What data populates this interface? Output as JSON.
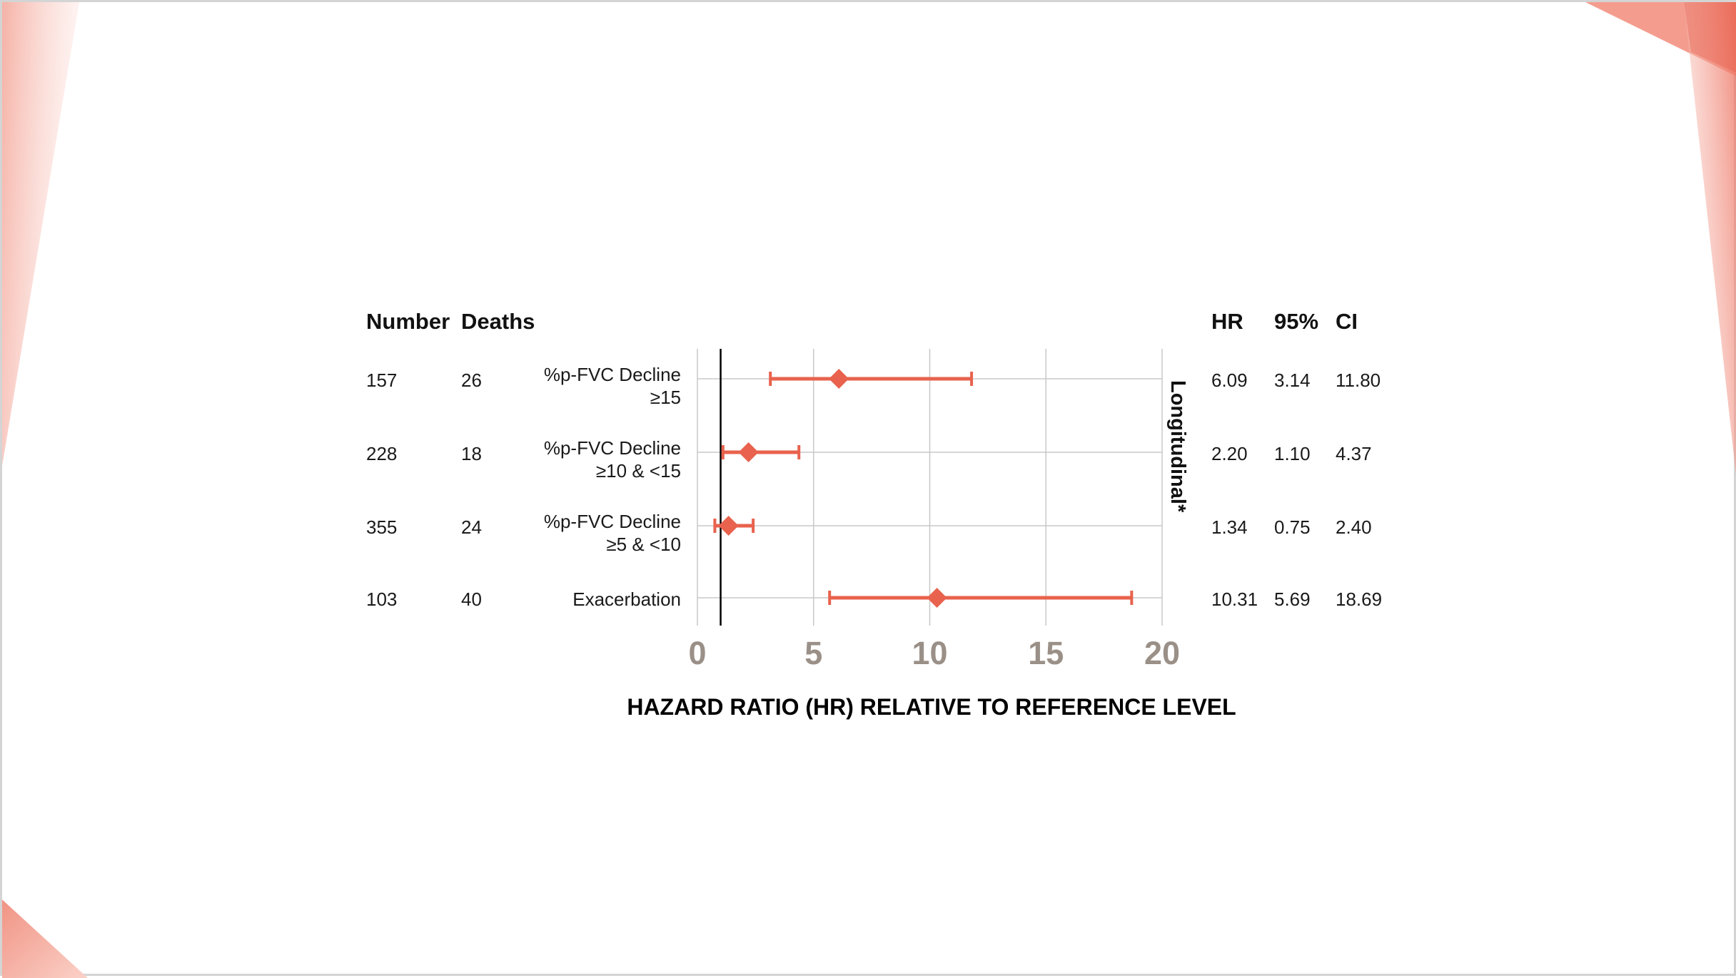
{
  "colors": {
    "marker": "#e8624d",
    "grid": "#c8c8c8",
    "reference_line": "#000000",
    "tick_label": "#9a9088",
    "decoration": "#e8624d"
  },
  "headers": {
    "number": "Number",
    "deaths": "Deaths",
    "hr": "HR",
    "ci_95": "95%",
    "ci": "CI"
  },
  "side_label": "Longitudinal*",
  "chart_data": {
    "type": "forest",
    "xlabel": "HAZARD RATIO (HR) RELATIVE TO REFERENCE LEVEL",
    "xlim": [
      0,
      20
    ],
    "xticks": [
      "0",
      "5",
      "10",
      "15",
      "20"
    ],
    "reference_line": 1,
    "grid": true,
    "rows": [
      {
        "number": "157",
        "deaths": "26",
        "label": [
          "%p-FVC Decline",
          "≥15"
        ],
        "hr": 6.09,
        "lower": 3.14,
        "upper": 11.8,
        "hr_text": "6.09",
        "lower_text": "3.14",
        "upper_text": "11.80"
      },
      {
        "number": "228",
        "deaths": "18",
        "label": [
          "%p-FVC Decline",
          "≥10 & <15"
        ],
        "hr": 2.2,
        "lower": 1.1,
        "upper": 4.37,
        "hr_text": "2.20",
        "lower_text": "1.10",
        "upper_text": "4.37"
      },
      {
        "number": "355",
        "deaths": "24",
        "label": [
          "%p-FVC Decline",
          "≥5 & <10"
        ],
        "hr": 1.34,
        "lower": 0.75,
        "upper": 2.4,
        "hr_text": "1.34",
        "lower_text": "0.75",
        "upper_text": "2.40"
      },
      {
        "number": "103",
        "deaths": "40",
        "label": [
          "Exacerbation"
        ],
        "hr": 10.31,
        "lower": 5.69,
        "upper": 18.69,
        "hr_text": "10.31",
        "lower_text": "5.69",
        "upper_text": "18.69"
      }
    ]
  }
}
